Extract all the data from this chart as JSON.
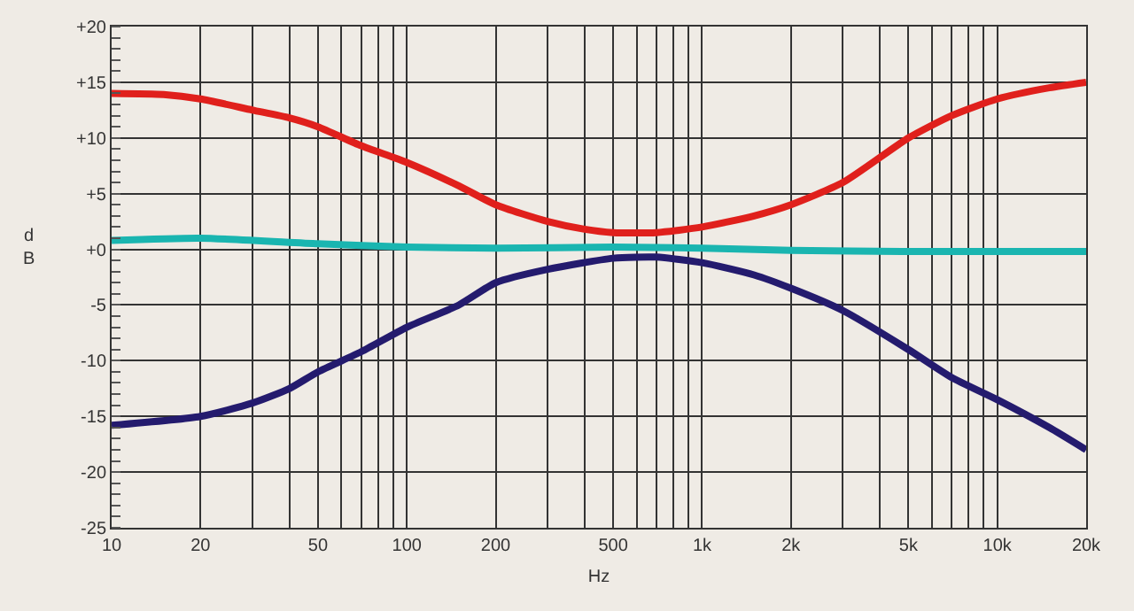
{
  "chart_data": {
    "type": "line",
    "xlabel": "Hz",
    "ylabel": "dB",
    "log": "x",
    "grid": true,
    "marker": "none",
    "line_style": "solid",
    "xlim": [
      10,
      20000
    ],
    "xticks": [
      10,
      20,
      {
        "value": 30,
        "label": null
      },
      {
        "value": 40,
        "label": null
      },
      50,
      {
        "value": 60,
        "label": null
      },
      {
        "value": 70,
        "label": null
      },
      {
        "value": 80,
        "label": null
      },
      {
        "value": 90,
        "label": null
      },
      100,
      200,
      {
        "value": 300,
        "label": null
      },
      {
        "value": 400,
        "label": null
      },
      500,
      {
        "value": 600,
        "label": null
      },
      {
        "value": 700,
        "label": null
      },
      {
        "value": 800,
        "label": null
      },
      {
        "value": 900,
        "label": null
      },
      {
        "value": 1000,
        "label": "1k"
      },
      {
        "value": 2000,
        "label": "2k"
      },
      {
        "value": 3000,
        "label": null
      },
      {
        "value": 4000,
        "label": null
      },
      {
        "value": 5000,
        "label": "5k"
      },
      {
        "value": 6000,
        "label": null
      },
      {
        "value": 7000,
        "label": null
      },
      {
        "value": 8000,
        "label": null
      },
      {
        "value": 9000,
        "label": null
      },
      {
        "value": 10000,
        "label": "10k"
      },
      {
        "value": 20000,
        "label": "20k"
      }
    ],
    "ylim": [
      -25,
      20
    ],
    "yticks": [
      {
        "value": 20,
        "label": "+20"
      },
      {
        "value": 15,
        "label": "+15"
      },
      {
        "value": 10,
        "label": "+10"
      },
      {
        "value": 5,
        "label": "+5"
      },
      {
        "value": 0,
        "label": "+0"
      },
      -5,
      -10,
      -15,
      -20,
      -25
    ],
    "series": [
      {
        "color": "#e0201c",
        "x": [
          10,
          15,
          20,
          30,
          40,
          50,
          70,
          100,
          150,
          200,
          300,
          400,
          500,
          700,
          1000,
          1500,
          2000,
          3000,
          5000,
          7000,
          10000,
          15000,
          20000
        ],
        "values": [
          14,
          13.9,
          13.5,
          12.5,
          11.8,
          11,
          9.3,
          7.8,
          5.7,
          4,
          2.5,
          1.8,
          1.5,
          1.5,
          2,
          3,
          4,
          6,
          10,
          12,
          13.5,
          14.5,
          15
        ]
      },
      {
        "color": "#1ab5b0",
        "x": [
          10,
          20,
          50,
          100,
          200,
          500,
          1000,
          2000,
          5000,
          20000
        ],
        "values": [
          0.8,
          1,
          0.5,
          0.2,
          0.1,
          0.2,
          0.1,
          -0.1,
          -0.2,
          -0.2
        ]
      },
      {
        "color": "#241b6e",
        "x": [
          10,
          20,
          30,
          40,
          50,
          70,
          100,
          150,
          200,
          300,
          500,
          700,
          1000,
          1500,
          2000,
          3000,
          5000,
          7000,
          10000,
          15000,
          20000
        ],
        "values": [
          -15.8,
          -15,
          -13.8,
          -12.5,
          -11,
          -9.2,
          -7,
          -5,
          -3,
          -1.8,
          -0.8,
          -0.7,
          -1.2,
          -2.3,
          -3.5,
          -5.5,
          -9,
          -11.5,
          -13.5,
          -16,
          -18
        ]
      }
    ]
  }
}
